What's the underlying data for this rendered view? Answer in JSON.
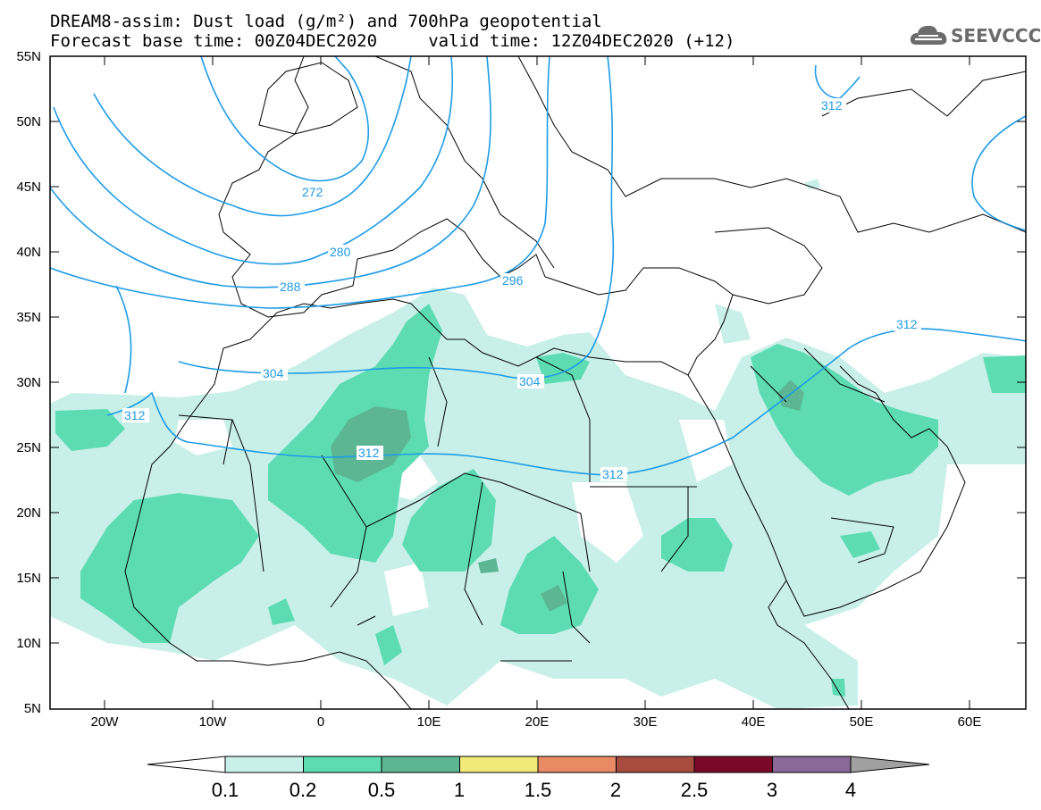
{
  "title_line1": "DREAM8-assim: Dust load (g/m²) and 700hPa geopotential",
  "title_line2": "Forecast base time: 00Z04DEC2020     valid time: 12Z04DEC2020 (+12)",
  "logo_text": "SEEVCCC",
  "lat_labels": [
    "55N",
    "50N",
    "45N",
    "40N",
    "35N",
    "30N",
    "25N",
    "20N",
    "15N",
    "10N",
    "5N"
  ],
  "lon_labels": [
    "20W",
    "10W",
    "0",
    "10E",
    "20E",
    "30E",
    "40E",
    "50E",
    "60E"
  ],
  "contour_color": "#1e9be6",
  "contour_labels": [
    "272",
    "280",
    "288",
    "296",
    "304",
    "304",
    "312",
    "312",
    "312",
    "312",
    "312"
  ],
  "colorbar": {
    "ticks": [
      "0.1",
      "0.2",
      "0.5",
      "1",
      "1.5",
      "2",
      "2.5",
      "3",
      "4"
    ],
    "colors": [
      "#c8f0e8",
      "#5ddcb2",
      "#5cb694",
      "#f2ea78",
      "#e88a64",
      "#a84c40",
      "#780a28",
      "#8a6898",
      "#a0a0a0"
    ],
    "below_color": "#ffffff"
  },
  "chart_data": {
    "type": "heatmap",
    "variable": "Dust load (g/m²)",
    "overlay": "700hPa geopotential",
    "levels": [
      0.1,
      0.2,
      0.5,
      1,
      1.5,
      2,
      2.5,
      3,
      4
    ],
    "lon_range": [
      -25,
      65
    ],
    "lat_range": [
      5,
      55
    ],
    "contour_values": [
      272,
      280,
      288,
      296,
      304,
      312
    ]
  }
}
